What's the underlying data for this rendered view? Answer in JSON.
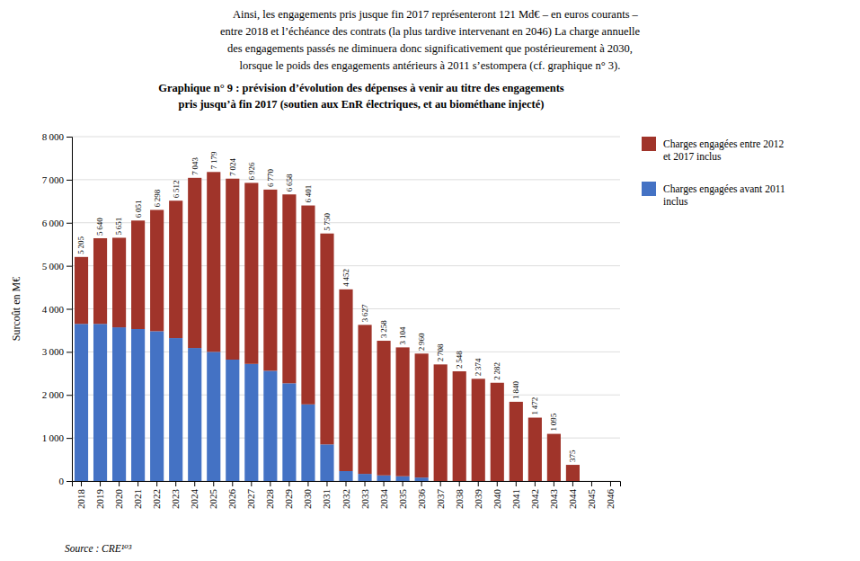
{
  "chart_data": {
    "type": "bar",
    "stacked": true,
    "grid": true,
    "legend": "right",
    "data_labels": true,
    "paragraph": [
      "    Ainsi, les engagements pris jusque fin 2017 représenteront 121 Md€ – en euros courants –",
      "entre 2018 et l’échéance des contrats (la plus tardive intervenant en 2046) La charge annuelle",
      "des engagements passés ne diminuera donc significativement que postérieurement à 2030,",
      "lorsque le poids des engagements antérieurs à 2011 s’estompera (cf. graphique n° 3)."
    ],
    "title": "Graphique n° 9 : prévision d’évolution des dépenses à venir au titre des engagements\npris jusqu’à fin 2017 (soutien aux EnR électriques, et au biométhane injecté)",
    "ylabel": "Surcoût en M€",
    "source": "Source : CRE¹⁰³",
    "categories": [
      2018,
      2019,
      2020,
      2021,
      2022,
      2023,
      2024,
      2025,
      2026,
      2027,
      2028,
      2029,
      2030,
      2031,
      2032,
      2033,
      2034,
      2035,
      2036,
      2037,
      2038,
      2039,
      2040,
      2041,
      2042,
      2043,
      2044,
      2045,
      2046
    ],
    "series": [
      {
        "name": "Charges engagées avant 2011\ninclus",
        "color": "#4472c4",
        "values": [
          3650,
          3650,
          3570,
          3530,
          3480,
          3320,
          3090,
          3000,
          2820,
          2720,
          2560,
          2270,
          1780,
          850,
          230,
          165,
          130,
          110,
          80,
          0,
          0,
          0,
          0,
          0,
          0,
          0,
          0,
          0,
          0
        ]
      },
      {
        "name": "Charges engagées entre 2012\net 2017 inclus",
        "color": "#a0342a",
        "values": [
          1555,
          1990,
          2081,
          2521,
          2818,
          3192,
          3953,
          4179,
          4204,
          4206,
          4210,
          4388,
          4621,
          4900,
          4222,
          3462,
          3128,
          2994,
          2880,
          2708,
          2548,
          2374,
          2282,
          1840,
          1472,
          1095,
          375,
          0,
          0
        ]
      }
    ],
    "totals": [
      5205,
      5640,
      5651,
      6051,
      6298,
      6512,
      7043,
      7179,
      7024,
      6926,
      6770,
      6658,
      6401,
      5750,
      4452,
      3627,
      3258,
      3104,
      2960,
      2708,
      2548,
      2374,
      2282,
      1840,
      1472,
      1095,
      375,
      0,
      0
    ],
    "total_labels": [
      "5 205",
      "5 640",
      "5 651",
      "6 051",
      "6 298",
      "6 512",
      "7 043",
      "7 179",
      "7 024",
      "6 926",
      "6 770",
      "6 658",
      "6 401",
      "5 750",
      "4 452",
      "3 627",
      "3 258",
      "3 104",
      "2 960",
      "2 708",
      "2 548",
      "2 374",
      "2 282",
      "1 840",
      "1 472",
      "1 095",
      "375",
      null,
      null
    ],
    "ylim": [
      0,
      8000
    ],
    "yticks": [
      0,
      {
        "value": 1000,
        "label": "1 000"
      },
      {
        "value": 2000,
        "label": "2 000"
      },
      {
        "value": 3000,
        "label": "3 000"
      },
      {
        "value": 4000,
        "label": "4 000"
      },
      {
        "value": 5000,
        "label": "5 000"
      },
      {
        "value": 6000,
        "label": "6 000"
      },
      {
        "value": 7000,
        "label": "7 000"
      },
      {
        "value": 8000,
        "label": "8 000"
      }
    ]
  }
}
